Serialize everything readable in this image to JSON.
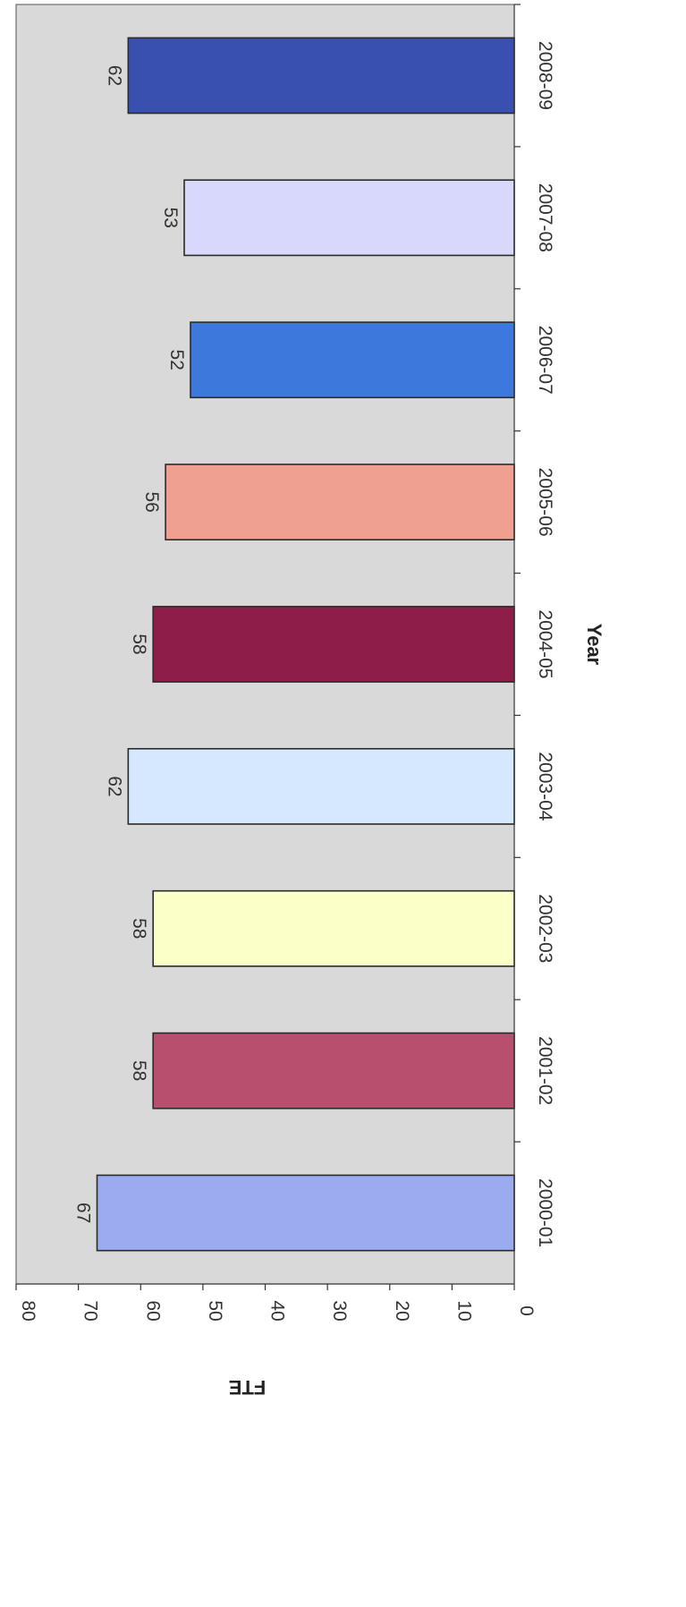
{
  "chart_data": {
    "type": "bar",
    "orientation": "rotated-90-clockwise",
    "title": "",
    "xlabel": "Year",
    "ylabel": "FTE",
    "categories": [
      "2000-01",
      "2001-02",
      "2002-03",
      "2003-04",
      "2004-05",
      "2005-06",
      "2006-07",
      "2007-08",
      "2008-09"
    ],
    "values": [
      67,
      58,
      58,
      62,
      58,
      56,
      52,
      53,
      62
    ],
    "data_labels": [
      "67",
      "58",
      "58",
      "62",
      "58",
      "56",
      "52",
      "53",
      "62"
    ],
    "ylim": [
      0,
      80
    ],
    "yticks": [
      0,
      10,
      20,
      30,
      40,
      50,
      60,
      70,
      80
    ],
    "bar_colors": [
      "#9aabf0",
      "#b84f6e",
      "#fbffc8",
      "#d6e8ff",
      "#8e1d4a",
      "#f0a090",
      "#3d78dd",
      "#d8d8fc",
      "#3a50b0"
    ],
    "plot_background": "#d9d9d9",
    "grid": false,
    "legend": "none"
  }
}
